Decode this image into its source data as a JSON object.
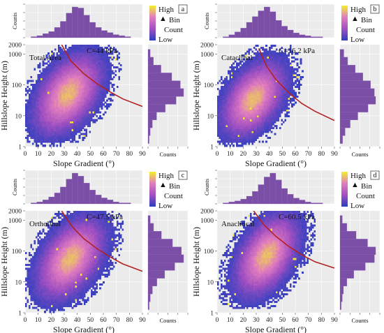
{
  "colors": {
    "low": "#2b3fbf",
    "mid": "#a14fc1",
    "mid2": "#e07cbf",
    "high": "#f4ef2a",
    "hist": "#7b4fa6",
    "curve": "#b22222",
    "panel_bg": "#ebebeb"
  },
  "shared": {
    "xlabel": "Slope Gradient (°)",
    "ylabel": "Hillslope Height (m)",
    "y_hist_counts_label": "Counts",
    "x_hist_counts_label": "Counts",
    "colorbar": {
      "high": "High",
      "bin": "Bin",
      "count": "Count",
      "low": "Low",
      "arrow": "▲"
    },
    "xticks": [
      0,
      10,
      20,
      30,
      40,
      50,
      60,
      70,
      80,
      90
    ],
    "yticks": [
      1,
      10,
      100,
      1000,
      2000
    ]
  },
  "chart_data": [
    {
      "type": "heatmap",
      "letter": "a",
      "label": "Total Area",
      "c_label": "C=44 kPa",
      "xlim": [
        0,
        90
      ],
      "ylim": [
        1,
        2000
      ],
      "yscale": "log",
      "density": {
        "peak_x": 33,
        "peak_logy": 1.7,
        "sx": 14,
        "slogy": 0.7,
        "rho": 0.45,
        "xmax": 82
      },
      "curve": {
        "points": [
          [
            28,
            2000
          ],
          [
            35,
            600
          ],
          [
            45,
            230
          ],
          [
            55,
            110
          ],
          [
            65,
            60
          ],
          [
            75,
            35
          ],
          [
            90,
            20
          ]
        ]
      },
      "x_hist": [
        1,
        2,
        4,
        6,
        10,
        16,
        24,
        30,
        29,
        22,
        15,
        10,
        7,
        5,
        3,
        2,
        1
      ],
      "y_hist": [
        1,
        2,
        4,
        8,
        16,
        26,
        33,
        30,
        22,
        12,
        5,
        2
      ]
    },
    {
      "type": "heatmap",
      "letter": "b",
      "label": "Cataclinal",
      "c_label": "C=16.2 kPa",
      "xlim": [
        0,
        90
      ],
      "ylim": [
        1,
        2000
      ],
      "yscale": "log",
      "density": {
        "peak_x": 28,
        "peak_logy": 1.55,
        "sx": 13,
        "slogy": 0.65,
        "rho": 0.45,
        "xmax": 80
      },
      "curve": {
        "points": [
          [
            32,
            1500
          ],
          [
            38,
            400
          ],
          [
            45,
            150
          ],
          [
            55,
            55
          ],
          [
            65,
            25
          ],
          [
            75,
            14
          ],
          [
            90,
            7
          ]
        ]
      },
      "x_hist": [
        1,
        3,
        6,
        10,
        16,
        22,
        28,
        32,
        27,
        18,
        12,
        8,
        5,
        3,
        2,
        1,
        1
      ],
      "y_hist": [
        2,
        4,
        8,
        14,
        22,
        28,
        27,
        24,
        18,
        12,
        6,
        3
      ]
    },
    {
      "type": "heatmap",
      "letter": "c",
      "label": "Ortholinal",
      "c_label": "C=47.5 kPa",
      "xlim": [
        0,
        90
      ],
      "ylim": [
        1,
        2000
      ],
      "yscale": "log",
      "density": {
        "peak_x": 35,
        "peak_logy": 1.75,
        "sx": 14,
        "slogy": 0.7,
        "rho": 0.45,
        "xmax": 80
      },
      "curve": {
        "points": [
          [
            28,
            2000
          ],
          [
            36,
            620
          ],
          [
            45,
            250
          ],
          [
            55,
            120
          ],
          [
            65,
            65
          ],
          [
            75,
            38
          ],
          [
            90,
            22
          ]
        ]
      },
      "x_hist": [
        1,
        2,
        4,
        7,
        11,
        17,
        25,
        31,
        28,
        21,
        14,
        9,
        6,
        4,
        2,
        1,
        1
      ],
      "y_hist": [
        1,
        2,
        4,
        8,
        15,
        24,
        32,
        30,
        22,
        12,
        5,
        2
      ]
    },
    {
      "type": "heatmap",
      "letter": "d",
      "label": "Anaclincal",
      "c_label": "C=60.5 kPa",
      "xlim": [
        0,
        90
      ],
      "ylim": [
        1,
        2000
      ],
      "yscale": "log",
      "density": {
        "peak_x": 38,
        "peak_logy": 1.85,
        "sx": 13,
        "slogy": 0.7,
        "rho": 0.45,
        "xmax": 80
      },
      "curve": {
        "points": [
          [
            28,
            2000
          ],
          [
            36,
            700
          ],
          [
            45,
            300
          ],
          [
            55,
            140
          ],
          [
            65,
            75
          ],
          [
            75,
            45
          ],
          [
            90,
            28
          ]
        ]
      },
      "x_hist": [
        1,
        2,
        3,
        5,
        8,
        13,
        20,
        28,
        32,
        25,
        16,
        10,
        6,
        4,
        2,
        1,
        1
      ],
      "y_hist": [
        1,
        2,
        3,
        6,
        12,
        22,
        30,
        31,
        24,
        14,
        6,
        2
      ]
    }
  ]
}
